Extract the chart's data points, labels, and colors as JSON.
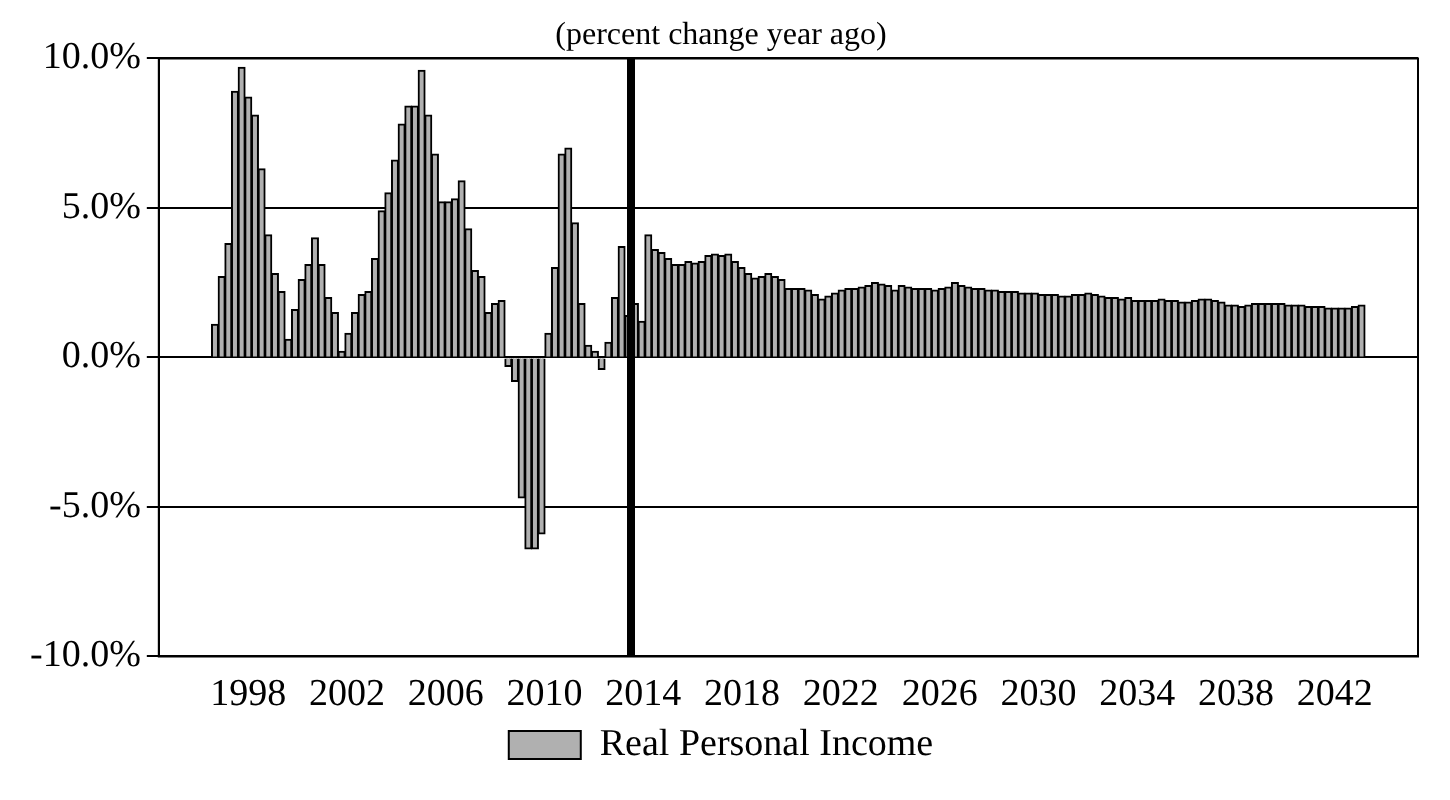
{
  "chart_data": {
    "type": "bar",
    "subtitle": "(percent change year ago)",
    "x": [
      1997.15,
      1997.42,
      1997.69,
      1997.96,
      1998.23,
      1998.5,
      1998.77,
      1999.04,
      1999.31,
      1999.58,
      1999.85,
      2000.12,
      2000.39,
      2000.66,
      2000.93,
      2001.2,
      2001.47,
      2001.74,
      2002.01,
      2002.28,
      2002.55,
      2002.82,
      2003.09,
      2003.36,
      2003.63,
      2003.9,
      2004.17,
      2004.44,
      2004.71,
      2004.98,
      2005.25,
      2005.52,
      2005.79,
      2006.06,
      2006.33,
      2006.6,
      2006.87,
      2007.14,
      2007.41,
      2007.68,
      2007.95,
      2008.22,
      2008.49,
      2008.76,
      2009.03,
      2009.3,
      2009.57,
      2009.84,
      2010.11,
      2010.38,
      2010.65,
      2010.92,
      2011.19,
      2011.46,
      2011.73,
      2012.0,
      2012.27,
      2012.54,
      2012.81,
      2013.08,
      2013.35,
      2013.62,
      2013.89,
      2014.16,
      2014.43,
      2014.7,
      2014.97,
      2015.24,
      2015.51,
      2015.78,
      2016.05,
      2016.32,
      2016.59,
      2016.86,
      2017.13,
      2017.4,
      2017.67,
      2017.94,
      2018.21,
      2018.48,
      2018.75,
      2019.02,
      2019.29,
      2019.56,
      2019.83,
      2020.1,
      2020.37,
      2020.64,
      2020.91,
      2021.18,
      2021.45,
      2021.72,
      2021.99,
      2022.26,
      2022.53,
      2022.8,
      2023.07,
      2023.34,
      2023.61,
      2023.88,
      2024.15,
      2024.42,
      2024.69,
      2024.96,
      2025.23,
      2025.5,
      2025.77,
      2026.04,
      2026.31,
      2026.58,
      2026.85,
      2027.12,
      2027.39,
      2027.66,
      2027.93,
      2028.2,
      2028.47,
      2028.74,
      2029.01,
      2029.28,
      2029.55,
      2029.82,
      2030.09,
      2030.36,
      2030.63,
      2030.9,
      2031.17,
      2031.44,
      2031.71,
      2031.98,
      2032.25,
      2032.52,
      2032.79,
      2033.06,
      2033.33,
      2033.6,
      2033.87,
      2034.14,
      2034.41,
      2034.68,
      2034.95,
      2035.22,
      2035.49,
      2035.76,
      2036.03,
      2036.3,
      2036.57,
      2036.84,
      2037.11,
      2037.38,
      2037.65,
      2037.92,
      2038.19,
      2038.46,
      2038.73,
      2039.0,
      2039.27,
      2039.54,
      2039.81,
      2040.08,
      2040.35,
      2040.62,
      2040.89,
      2041.16,
      2041.43,
      2041.7,
      2041.97,
      2042.24,
      2042.51,
      2042.78,
      2043.05,
      2043.32,
      2043.59
    ],
    "series": [
      {
        "name": "Real Personal Income",
        "color": "#b0b0b0",
        "values": [
          1.1,
          2.7,
          3.8,
          8.9,
          9.7,
          8.7,
          8.1,
          6.3,
          4.1,
          2.8,
          2.2,
          0.6,
          1.6,
          2.6,
          3.1,
          4.0,
          3.1,
          2.0,
          1.5,
          0.2,
          0.8,
          1.5,
          2.1,
          2.2,
          3.3,
          4.9,
          5.5,
          6.6,
          7.8,
          8.4,
          8.4,
          9.6,
          8.1,
          6.8,
          5.2,
          5.2,
          5.3,
          5.9,
          4.3,
          2.9,
          2.7,
          1.5,
          1.8,
          1.9,
          -0.3,
          -0.8,
          -4.7,
          -6.4,
          -6.4,
          -5.9,
          0.8,
          3.0,
          6.8,
          7.0,
          4.5,
          1.8,
          0.4,
          0.2,
          -0.4,
          0.5,
          2.0,
          3.7,
          1.4,
          1.8,
          1.2,
          4.1,
          3.6,
          3.5,
          3.3,
          3.1,
          3.1,
          3.2,
          3.15,
          3.2,
          3.4,
          3.45,
          3.4,
          3.45,
          3.2,
          3.0,
          2.8,
          2.65,
          2.7,
          2.8,
          2.7,
          2.6,
          2.3,
          2.3,
          2.3,
          2.25,
          2.1,
          1.95,
          2.05,
          2.15,
          2.25,
          2.3,
          2.3,
          2.35,
          2.4,
          2.5,
          2.45,
          2.4,
          2.25,
          2.4,
          2.35,
          2.3,
          2.3,
          2.3,
          2.25,
          2.3,
          2.35,
          2.5,
          2.4,
          2.35,
          2.3,
          2.3,
          2.25,
          2.25,
          2.2,
          2.2,
          2.2,
          2.15,
          2.15,
          2.15,
          2.1,
          2.1,
          2.1,
          2.05,
          2.05,
          2.1,
          2.1,
          2.15,
          2.1,
          2.05,
          2.0,
          2.0,
          1.95,
          2.0,
          1.9,
          1.9,
          1.9,
          1.9,
          1.95,
          1.9,
          1.9,
          1.85,
          1.85,
          1.9,
          1.95,
          1.95,
          1.9,
          1.85,
          1.75,
          1.75,
          1.7,
          1.75,
          1.8,
          1.8,
          1.8,
          1.8,
          1.8,
          1.75,
          1.75,
          1.75,
          1.7,
          1.7,
          1.7,
          1.65,
          1.65,
          1.65,
          1.65,
          1.7,
          1.75
        ]
      }
    ],
    "xlim": [
      1997,
      2043.75
    ],
    "xticks": [
      {
        "value": 1998.5,
        "label": "1998"
      },
      {
        "value": 2002.5,
        "label": "2002"
      },
      {
        "value": 2006.5,
        "label": "2006"
      },
      {
        "value": 2010.5,
        "label": "2010"
      },
      {
        "value": 2014.5,
        "label": "2014"
      },
      {
        "value": 2018.5,
        "label": "2018"
      },
      {
        "value": 2022.5,
        "label": "2022"
      },
      {
        "value": 2026.5,
        "label": "2026"
      },
      {
        "value": 2030.5,
        "label": "2030"
      },
      {
        "value": 2034.5,
        "label": "2034"
      },
      {
        "value": 2038.5,
        "label": "2038"
      },
      {
        "value": 2042.5,
        "label": "2042"
      }
    ],
    "ylim": [
      -10,
      10
    ],
    "yticks": [
      {
        "value": -10,
        "label": "-10.0%"
      },
      {
        "value": -5,
        "label": "-5.0%"
      },
      {
        "value": 0,
        "label": "0.0%"
      },
      {
        "value": 5,
        "label": "5.0%"
      },
      {
        "value": 10,
        "label": "10.0%"
      }
    ],
    "ref_lines": [
      {
        "axis": "x",
        "value": 2014.0,
        "color": "#000000"
      }
    ],
    "grid": "y",
    "legend": "bottom"
  }
}
